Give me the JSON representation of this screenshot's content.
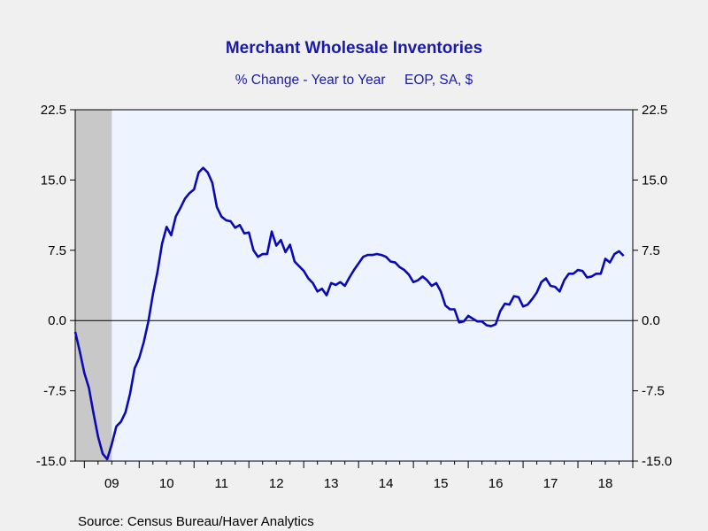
{
  "chart_data": {
    "type": "line",
    "title": "Merchant Wholesale Inventories",
    "subtitle": "% Change - Year to Year     EOP, SA, $",
    "xlabel": "",
    "ylabel": "",
    "ylim": [
      -15.0,
      22.5
    ],
    "y_ticks": [
      "22.5",
      "15.0",
      "7.5",
      "0.0",
      "-7.5",
      "-15.0"
    ],
    "y_tick_values": [
      22.5,
      15.0,
      7.5,
      0.0,
      -7.5,
      -15.0
    ],
    "x_tick_labels": [
      "09",
      "10",
      "11",
      "12",
      "13",
      "14",
      "15",
      "16",
      "17",
      "18"
    ],
    "x_range": [
      "2008-11",
      "2018-12"
    ],
    "zero_line": true,
    "right_axis_mirror": true,
    "recession_shade": {
      "start": "2008-11",
      "end": "2009-06",
      "color": "#c8c8c8"
    },
    "colors": {
      "line": "#0a0ab4",
      "plot_bg": "#eef4ff",
      "page_bg": "#f0f0f0",
      "title": "#1a1aa8"
    },
    "series": [
      {
        "start": "2008-11",
        "values": [
          -1.2,
          -3.3,
          -5.6,
          -7.2,
          -9.9,
          -12.4,
          -14.2,
          -14.8,
          -13.2,
          -11.3,
          -10.8,
          -9.8,
          -7.8,
          -5.1,
          -4.0,
          -2.3,
          -0.1,
          2.8,
          5.2,
          8.2,
          10.0,
          9.1,
          11.1,
          12.0,
          13.0,
          13.6,
          14.0,
          15.8,
          16.3,
          15.8,
          14.7,
          12.1,
          11.1,
          10.7,
          10.6,
          9.9,
          10.2,
          9.3,
          9.4,
          7.5,
          6.8,
          7.1,
          7.1,
          9.5,
          8.0,
          8.6,
          7.3,
          8.1,
          6.3,
          5.8,
          5.3,
          4.5,
          4.0,
          3.1,
          3.4,
          2.7,
          4.0,
          3.8,
          4.1,
          3.7,
          4.6,
          5.4,
          6.1,
          6.8,
          7.0,
          7.0,
          7.1,
          7.0,
          6.8,
          6.3,
          6.2,
          5.7,
          5.4,
          4.9,
          4.1,
          4.3,
          4.7,
          4.3,
          3.7,
          4.0,
          3.1,
          1.6,
          1.2,
          1.2,
          -0.2,
          -0.1,
          0.5,
          0.2,
          -0.1,
          -0.1,
          -0.5,
          -0.6,
          -0.4,
          1.0,
          1.8,
          1.7,
          2.6,
          2.5,
          1.5,
          1.7,
          2.3,
          3.0,
          4.1,
          4.5,
          3.7,
          3.6,
          3.1,
          4.3,
          5.0,
          5.0,
          5.4,
          5.3,
          4.6,
          4.7,
          5.0,
          5.0,
          6.6,
          6.2,
          7.1,
          7.4,
          6.9
        ]
      }
    ]
  },
  "footer": {
    "source": "Source:  Census Bureau/Haver Analytics"
  }
}
